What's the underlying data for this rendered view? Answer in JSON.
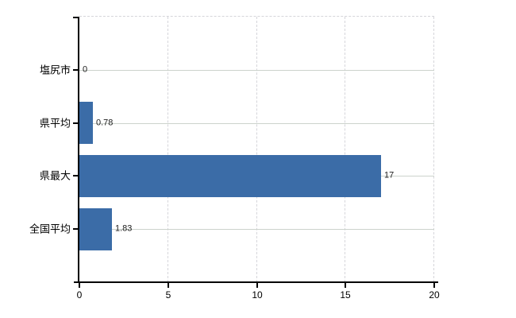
{
  "chart_data": {
    "type": "bar",
    "orientation": "horizontal",
    "title": "",
    "xlabel": "",
    "ylabel": "",
    "categories": [
      "塩尻市",
      "県平均",
      "県最大",
      "全国平均"
    ],
    "values": [
      0,
      0.78,
      17,
      1.83
    ],
    "value_labels": [
      "0",
      "0.78",
      "17",
      "1.83"
    ],
    "x_ticks": [
      "0",
      "5",
      "10",
      "15",
      "20"
    ],
    "x_tick_values": [
      0,
      5,
      10,
      15,
      20
    ],
    "xlim": [
      0,
      20
    ],
    "grid": true,
    "legend": false,
    "colors": {
      "bar": "#3B6CA7",
      "axis": "#000000",
      "h_gridline": "#ccd3cc",
      "v_gridline": "#d5d5da",
      "plot_border": "#d5d5da",
      "text": "#000000",
      "value_text": "#1c1c1c",
      "background": "#ffffff"
    }
  }
}
